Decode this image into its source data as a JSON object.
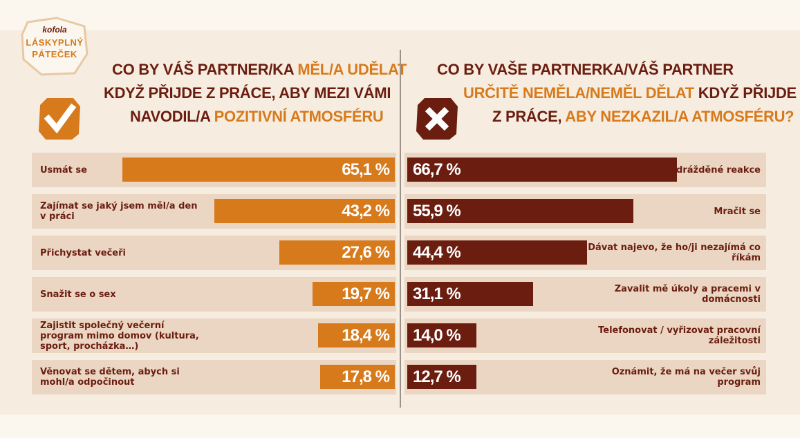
{
  "logo": {
    "brand": "kofola",
    "line1": "LÁSKYPLNÝ",
    "line2": "PÁTEČEK"
  },
  "left_heading": {
    "line1_a": "CO BY VÁŠ PARTNER/KA ",
    "line1_b": "MĚL/A UDĚLAT",
    "line2": "KDYŽ PŘIJDE Z PRÁCE, ABY MEZI VÁMI",
    "line3_a": "NAVODIL/A ",
    "line3_b": "POZITIVNÍ ATMOSFÉRU"
  },
  "right_heading": {
    "line1": "CO BY VAŠE PARTNERKA/VÁŠ PARTNER",
    "line2_a": "URČITĚ NEMĚLA/NEMĚL DĚLAT ",
    "line2_b": "KDYŽ PŘIJDE",
    "line3_a": "Z PRÁCE, ",
    "line3_b": "ABY NEZKAZIL/A ATMOSFÉRU?"
  },
  "icons": {
    "left": "checkmark-icon",
    "right": "cross-icon"
  },
  "colors": {
    "orange": "#d77a1c",
    "maroon": "#6b1d10",
    "row_bg": "#ead6c2",
    "page_bg": "#f6ede0"
  },
  "chart_data": [
    {
      "type": "bar",
      "orientation": "horizontal",
      "categories": [
        "Usmát se",
        "Zajímat se jaký jsem měl/a den v práci",
        "Přichystat večeři",
        "Snažit se o sex",
        "Zajistit společný večerní program mimo domov (kultura, sport, procházka…)",
        "Věnovat se dětem, abych si mohl/a odpočinout"
      ],
      "values": [
        65.1,
        43.2,
        27.6,
        19.7,
        18.4,
        17.8
      ],
      "value_labels": [
        "65,1 %",
        "43,2 %",
        "27,6 %",
        "19,7 %",
        "18,4 %",
        "17,8 %"
      ],
      "color": "#d77a1c"
    },
    {
      "type": "bar",
      "orientation": "horizontal",
      "categories": [
        "Mít podrážděné reakce",
        "Mračit se",
        "Dávat najevo, že ho/ji nezajímá co říkám",
        "Zavalit mě úkoly a pracemi v domácnosti",
        "Telefonovat / vyřizovat pracovní záležitosti",
        "Oznámit, že má na večer svůj program"
      ],
      "values": [
        66.7,
        55.9,
        44.4,
        31.1,
        14.0,
        12.7
      ],
      "value_labels": [
        "66,7 %",
        "55,9 %",
        "44,4 %",
        "31,1 %",
        "14,0 %",
        "12,7 %"
      ],
      "color": "#6b1d10"
    }
  ]
}
